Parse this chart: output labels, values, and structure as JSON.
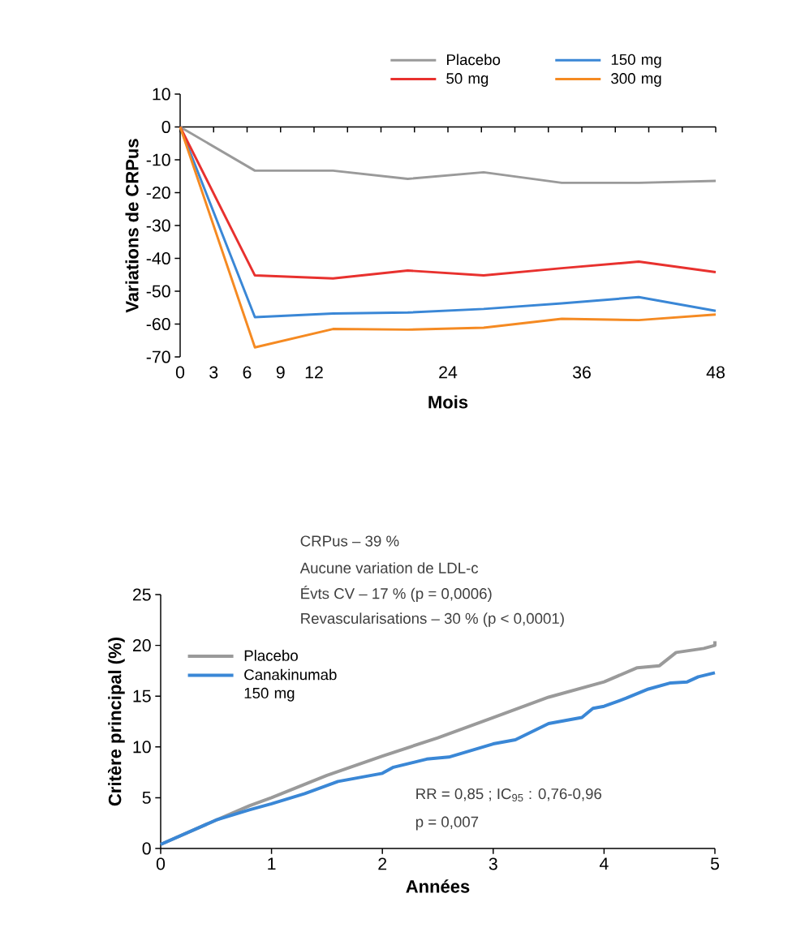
{
  "chart_data": [
    {
      "type": "line",
      "xlabel": "Mois",
      "ylabel": "Variations de CRPus",
      "x": [
        0,
        6.7,
        13.7,
        20.4,
        27.2,
        34.2,
        41.1,
        48
      ],
      "series": [
        {
          "name": "Placebo",
          "color": "#9a9a9a",
          "values": [
            0,
            -13.3,
            -13.3,
            -15.8,
            -13.8,
            -17,
            -17,
            -16.4
          ]
        },
        {
          "name": "150 mg",
          "color": "#3a87d6",
          "values": [
            0,
            -57.9,
            -56.8,
            -56.5,
            -55.4,
            -53.7,
            -51.8,
            -56
          ]
        },
        {
          "name": "50 mg",
          "color": "#e8312e",
          "values": [
            0,
            -45.2,
            -46.1,
            -43.7,
            -45.2,
            -43,
            -41,
            -44.2
          ]
        },
        {
          "name": "300 mg",
          "color": "#f58a22",
          "values": [
            0,
            -67.1,
            -61.5,
            -61.7,
            -61.1,
            -58.4,
            -58.8,
            -57.1
          ]
        }
      ],
      "xlim": [
        0,
        48
      ],
      "ylim": [
        -70,
        10
      ],
      "xticks": [
        0,
        3,
        6,
        9,
        12,
        {
          "value": 15,
          "label": null
        },
        {
          "value": 18,
          "label": null
        },
        {
          "value": 21,
          "label": null
        },
        24,
        {
          "value": 27,
          "label": null
        },
        {
          "value": 30,
          "label": null
        },
        {
          "value": 33,
          "label": null
        },
        36,
        {
          "value": 39,
          "label": null
        },
        {
          "value": 42,
          "label": null
        },
        {
          "value": 45,
          "label": null
        },
        48
      ],
      "yticks": [
        -70,
        -60,
        -50,
        -40,
        -30,
        -20,
        -10,
        0,
        10
      ],
      "legend": "top right"
    },
    {
      "type": "line",
      "xlabel": "Années",
      "ylabel": "Critère principal (%)",
      "series": [
        {
          "name": "Placebo",
          "color": "#9a9a9a",
          "x": [
            0,
            0.5,
            0.8,
            1.0,
            1.5,
            2.0,
            2.5,
            3.0,
            3.5,
            4.0,
            4.3,
            4.5,
            4.65,
            4.9,
            5.0,
            5.0
          ],
          "values": [
            0.4,
            2.8,
            4.2,
            5.0,
            7.2,
            9.1,
            10.9,
            12.9,
            14.9,
            16.4,
            17.8,
            18.0,
            19.3,
            19.7,
            20.0,
            20.4
          ]
        },
        {
          "name": "Canakinumab 150 mg",
          "color": "#3a87d6",
          "x": [
            0,
            0.5,
            0.8,
            1.0,
            1.3,
            1.6,
            2.0,
            2.1,
            2.4,
            2.6,
            3.0,
            3.2,
            3.5,
            3.8,
            3.9,
            4.0,
            4.2,
            4.4,
            4.6,
            4.75,
            4.85,
            5.0
          ],
          "values": [
            0.4,
            2.8,
            3.8,
            4.4,
            5.4,
            6.6,
            7.4,
            8.0,
            8.8,
            9.0,
            10.3,
            10.7,
            12.3,
            12.9,
            13.8,
            14.0,
            14.8,
            15.7,
            16.3,
            16.4,
            16.9,
            17.3
          ]
        }
      ],
      "xlim": [
        0,
        5
      ],
      "ylim": [
        0,
        25
      ],
      "xticks": [
        0,
        1,
        2,
        3,
        4,
        5
      ],
      "yticks": [
        0,
        5,
        10,
        15,
        20,
        25
      ],
      "annotations": [
        "CRPus – 39 %",
        "Aucune variation de LDL-c",
        "Évts CV – 17 % (p = 0,0006)",
        "Revascularisations – 30 % (p < 0,0001)",
        "RR = 0,85 ; IC$_{95}$ : 0,76-0,96",
        "p = 0,007"
      ],
      "legend": "left"
    }
  ]
}
